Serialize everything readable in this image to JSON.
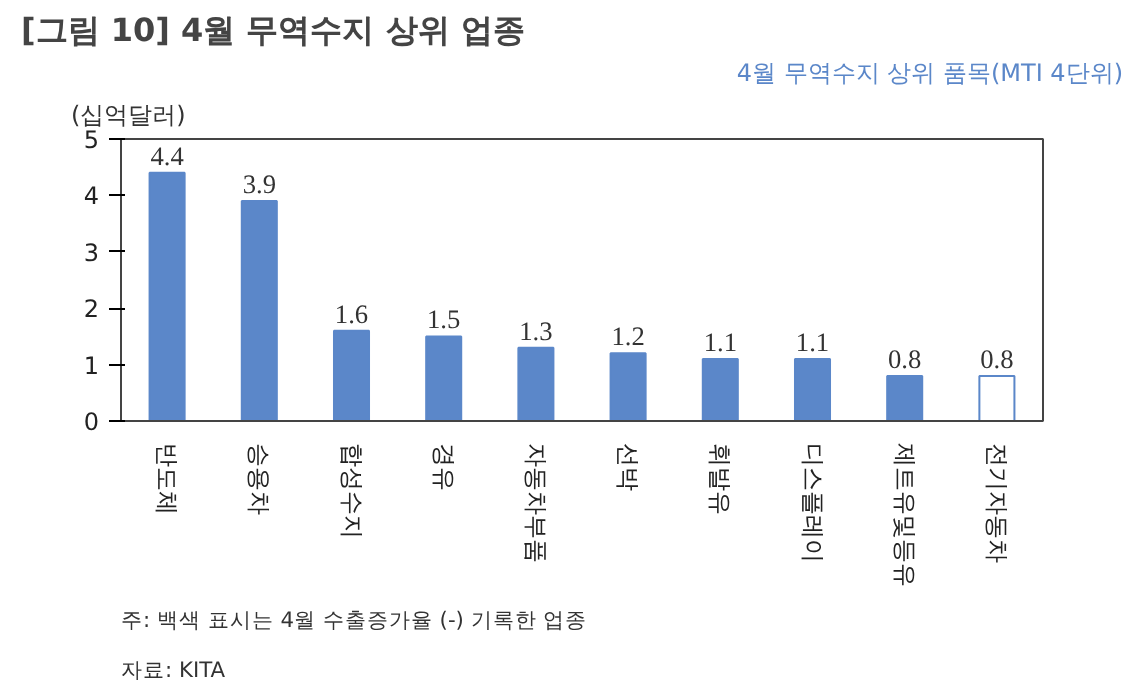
{
  "chart_data": {
    "type": "bar",
    "title": "[그림 10] 4월 무역수지 상위 업종",
    "subtitle": "4월 무역수지 상위 품목(MTI 4단위)",
    "ylabel": "(십억달러)",
    "categories": [
      "반도체",
      "승용차",
      "합성수지",
      "경유",
      "자동차부품",
      "선박",
      "휘발유",
      "디스플레이",
      "제트유및등유",
      "전기자동차"
    ],
    "values": [
      4.4,
      3.9,
      1.6,
      1.5,
      1.3,
      1.2,
      1.1,
      1.1,
      0.8,
      0.8
    ],
    "color": "#5b87c9",
    "colors": [
      "#5b87c9",
      "#5b87c9",
      "#5b87c9",
      "#5b87c9",
      "#5b87c9",
      "#5b87c9",
      "#5b87c9",
      "#5b87c9",
      "#5b87c9",
      "#ffffff"
    ],
    "ylim": [
      0,
      5
    ],
    "yticks": [
      0,
      1,
      2,
      3,
      4,
      5
    ],
    "grid": false,
    "data_labels": true,
    "annotations": [
      "주: 백색 표시는 4월 수출증가율 (-) 기록한 업종",
      "자료: KITA"
    ]
  }
}
